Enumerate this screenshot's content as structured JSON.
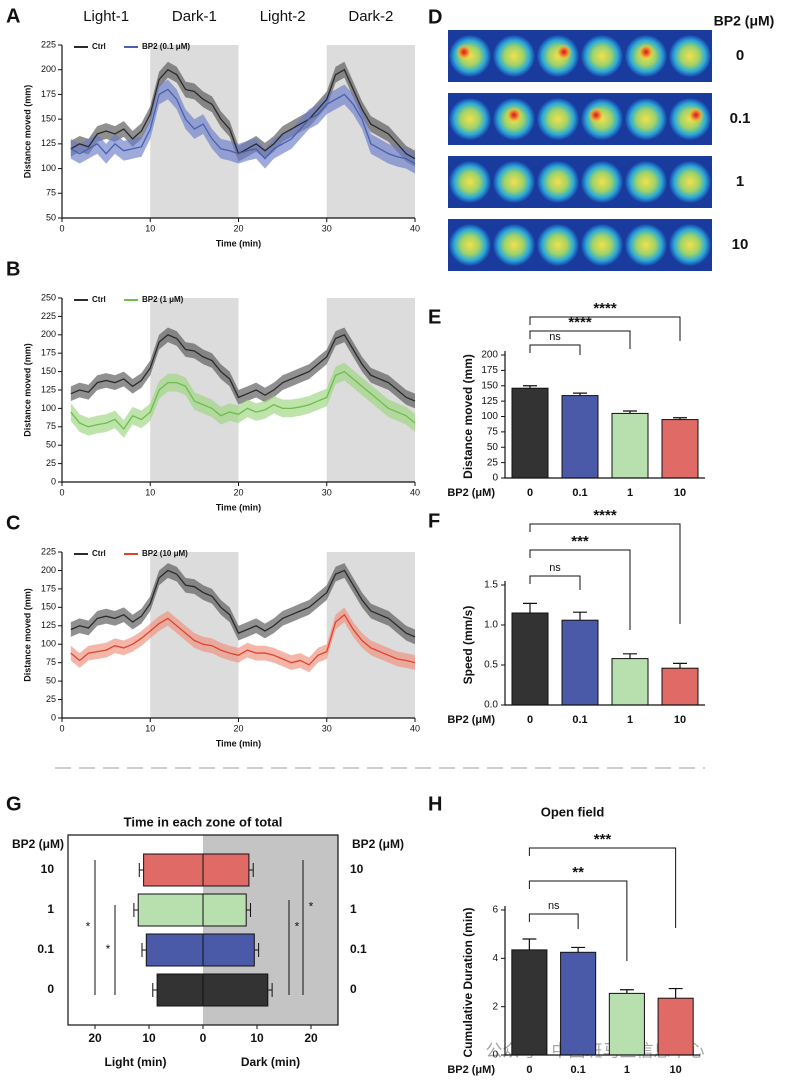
{
  "chart_data": [
    {
      "panel": "A",
      "type": "line",
      "xlabel": "Time (min)",
      "ylabel": "Distance moved (mm)",
      "phases": [
        {
          "label": "Light-1",
          "start": 0,
          "end": 10
        },
        {
          "label": "Dark-1",
          "start": 10,
          "end": 20
        },
        {
          "label": "Light-2",
          "start": 20,
          "end": 30
        },
        {
          "label": "Dark-2",
          "start": 30,
          "end": 40
        }
      ],
      "shaded": [
        [
          10,
          20
        ],
        [
          30,
          40
        ]
      ],
      "xlim": [
        0,
        40
      ],
      "xticks": [
        0,
        10,
        20,
        30,
        40
      ],
      "ylim": [
        50,
        225
      ],
      "yticks": [
        50,
        75,
        100,
        125,
        150,
        175,
        200,
        225
      ],
      "x": [
        1,
        2,
        3,
        4,
        5,
        6,
        7,
        8,
        9,
        10,
        11,
        12,
        13,
        14,
        15,
        16,
        17,
        18,
        19,
        20,
        21,
        22,
        23,
        24,
        25,
        26,
        27,
        28,
        29,
        30,
        31,
        32,
        33,
        34,
        35,
        36,
        37,
        38,
        39,
        40
      ],
      "series": [
        {
          "name": "Ctrl",
          "color": "#2b2b2b",
          "band_color": "#555555",
          "values": [
            120,
            125,
            122,
            135,
            138,
            135,
            140,
            130,
            138,
            155,
            190,
            200,
            195,
            180,
            178,
            170,
            165,
            150,
            140,
            115,
            120,
            125,
            118,
            125,
            135,
            140,
            145,
            150,
            160,
            170,
            195,
            200,
            180,
            160,
            145,
            140,
            135,
            125,
            115,
            110
          ],
          "errors": [
            8,
            8,
            8,
            8,
            8,
            8,
            8,
            8,
            8,
            8,
            8,
            8,
            8,
            8,
            8,
            8,
            8,
            8,
            8,
            8,
            8,
            8,
            8,
            8,
            8,
            8,
            8,
            8,
            8,
            8,
            8,
            8,
            8,
            8,
            8,
            8,
            8,
            8,
            8,
            8
          ]
        },
        {
          "name": "BP2 (0.1 μM)",
          "color": "#4a5fb0",
          "band_color": "#6a7cc8",
          "values": [
            120,
            115,
            120,
            125,
            115,
            125,
            118,
            120,
            122,
            140,
            175,
            180,
            170,
            150,
            140,
            145,
            130,
            120,
            118,
            115,
            118,
            120,
            110,
            120,
            125,
            130,
            140,
            150,
            155,
            165,
            170,
            175,
            165,
            150,
            125,
            120,
            115,
            112,
            110,
            105
          ],
          "errors": [
            10,
            10,
            10,
            10,
            10,
            10,
            10,
            10,
            10,
            10,
            10,
            10,
            10,
            10,
            10,
            10,
            10,
            10,
            10,
            10,
            10,
            10,
            10,
            10,
            10,
            10,
            10,
            10,
            10,
            10,
            10,
            10,
            10,
            10,
            10,
            10,
            10,
            10,
            10,
            10
          ]
        }
      ]
    },
    {
      "panel": "B",
      "type": "line",
      "xlabel": "Time (min)",
      "ylabel": "Distance moved (mm)",
      "shaded": [
        [
          10,
          20
        ],
        [
          30,
          40
        ]
      ],
      "xlim": [
        0,
        40
      ],
      "xticks": [
        0,
        10,
        20,
        30,
        40
      ],
      "ylim": [
        0,
        250
      ],
      "yticks": [
        0,
        25,
        50,
        75,
        100,
        125,
        150,
        175,
        200,
        225,
        250
      ],
      "x": [
        1,
        2,
        3,
        4,
        5,
        6,
        7,
        8,
        9,
        10,
        11,
        12,
        13,
        14,
        15,
        16,
        17,
        18,
        19,
        20,
        21,
        22,
        23,
        24,
        25,
        26,
        27,
        28,
        29,
        30,
        31,
        32,
        33,
        34,
        35,
        36,
        37,
        38,
        39,
        40
      ],
      "series": [
        {
          "name": "Ctrl",
          "color": "#2b2b2b",
          "band_color": "#555555",
          "values": [
            120,
            125,
            122,
            135,
            138,
            135,
            140,
            130,
            138,
            155,
            190,
            200,
            195,
            180,
            178,
            170,
            165,
            150,
            140,
            115,
            120,
            125,
            118,
            125,
            135,
            140,
            145,
            150,
            160,
            170,
            195,
            200,
            180,
            160,
            145,
            140,
            135,
            125,
            115,
            110
          ],
          "errors": [
            10,
            10,
            10,
            10,
            10,
            10,
            10,
            10,
            10,
            10,
            10,
            10,
            10,
            10,
            10,
            10,
            10,
            10,
            10,
            10,
            10,
            10,
            10,
            10,
            10,
            10,
            10,
            10,
            10,
            10,
            10,
            10,
            10,
            10,
            10,
            10,
            10,
            10,
            10,
            10
          ]
        },
        {
          "name": "BP2 (1 μM)",
          "color": "#6cbf4a",
          "band_color": "#9bd67e",
          "values": [
            95,
            80,
            75,
            78,
            80,
            85,
            72,
            90,
            85,
            95,
            125,
            135,
            135,
            130,
            110,
            105,
            100,
            90,
            95,
            92,
            100,
            95,
            98,
            105,
            100,
            100,
            102,
            105,
            110,
            115,
            145,
            150,
            140,
            130,
            120,
            110,
            100,
            95,
            90,
            80
          ],
          "errors": [
            12,
            12,
            12,
            12,
            12,
            12,
            12,
            12,
            12,
            12,
            12,
            12,
            12,
            12,
            12,
            12,
            12,
            12,
            12,
            12,
            12,
            12,
            12,
            12,
            12,
            12,
            12,
            12,
            12,
            12,
            12,
            12,
            12,
            12,
            12,
            12,
            12,
            12,
            12,
            12
          ]
        }
      ]
    },
    {
      "panel": "C",
      "type": "line",
      "xlabel": "Time (min)",
      "ylabel": "Distance moved (mm)",
      "shaded": [
        [
          10,
          20
        ],
        [
          30,
          40
        ]
      ],
      "xlim": [
        0,
        40
      ],
      "xticks": [
        0,
        10,
        20,
        30,
        40
      ],
      "ylim": [
        0,
        225
      ],
      "yticks": [
        0,
        25,
        50,
        75,
        100,
        125,
        150,
        175,
        200,
        225
      ],
      "x": [
        1,
        2,
        3,
        4,
        5,
        6,
        7,
        8,
        9,
        10,
        11,
        12,
        13,
        14,
        15,
        16,
        17,
        18,
        19,
        20,
        21,
        22,
        23,
        24,
        25,
        26,
        27,
        28,
        29,
        30,
        31,
        32,
        33,
        34,
        35,
        36,
        37,
        38,
        39,
        40
      ],
      "series": [
        {
          "name": "Ctrl",
          "color": "#2b2b2b",
          "band_color": "#555555",
          "values": [
            120,
            125,
            122,
            135,
            138,
            135,
            140,
            130,
            138,
            155,
            190,
            200,
            195,
            180,
            178,
            170,
            165,
            150,
            140,
            115,
            120,
            125,
            118,
            125,
            135,
            140,
            145,
            150,
            160,
            170,
            195,
            200,
            180,
            160,
            145,
            140,
            135,
            125,
            115,
            110
          ],
          "errors": [
            10,
            10,
            10,
            10,
            10,
            10,
            10,
            10,
            10,
            10,
            10,
            10,
            10,
            10,
            10,
            10,
            10,
            10,
            10,
            10,
            10,
            10,
            10,
            10,
            10,
            10,
            10,
            10,
            10,
            10,
            10,
            10,
            10,
            10,
            10,
            10,
            10,
            10,
            10,
            10
          ]
        },
        {
          "name": "BP2 (10 μM)",
          "color": "#e0432f",
          "band_color": "#ee8f7a",
          "values": [
            88,
            78,
            88,
            90,
            92,
            98,
            95,
            100,
            108,
            118,
            128,
            135,
            125,
            115,
            105,
            100,
            98,
            92,
            88,
            85,
            92,
            88,
            88,
            85,
            80,
            75,
            78,
            72,
            85,
            90,
            130,
            140,
            120,
            105,
            95,
            90,
            85,
            80,
            78,
            75
          ],
          "errors": [
            10,
            10,
            10,
            10,
            10,
            10,
            10,
            10,
            10,
            10,
            10,
            10,
            10,
            10,
            10,
            10,
            10,
            10,
            10,
            10,
            10,
            10,
            10,
            10,
            10,
            10,
            10,
            10,
            10,
            10,
            10,
            10,
            10,
            10,
            10,
            10,
            10,
            10,
            10,
            10
          ]
        }
      ]
    },
    {
      "panel": "D",
      "type": "heatmap",
      "legend_title": "BP2 (μM)",
      "rows": [
        "0",
        "0.1",
        "1",
        "10"
      ]
    },
    {
      "panel": "E",
      "type": "bar",
      "ylabel": "Distance moved (mm)",
      "xlabel": "BP2 (μM)",
      "categories": [
        "0",
        "0.1",
        "1",
        "10"
      ],
      "values": [
        146,
        134,
        105,
        95
      ],
      "errors": [
        4,
        4,
        4,
        3
      ],
      "colors": [
        "#333333",
        "#4a5aa8",
        "#b7e0ae",
        "#e06a66"
      ],
      "ylim": [
        0,
        200
      ],
      "yticks": [
        0,
        25,
        50,
        75,
        100,
        125,
        150,
        175,
        200
      ],
      "significance": [
        {
          "from": 0,
          "to": 1,
          "label": "ns"
        },
        {
          "from": 0,
          "to": 2,
          "label": "****"
        },
        {
          "from": 0,
          "to": 3,
          "label": "****"
        }
      ]
    },
    {
      "panel": "F",
      "type": "bar",
      "ylabel": "Speed (mm/s)",
      "xlabel": "BP2 (μM)",
      "categories": [
        "0",
        "0.1",
        "1",
        "10"
      ],
      "values": [
        1.15,
        1.06,
        0.58,
        0.46
      ],
      "errors": [
        0.12,
        0.1,
        0.06,
        0.06
      ],
      "colors": [
        "#333333",
        "#4a5aa8",
        "#b7e0ae",
        "#e06a66"
      ],
      "ylim": [
        0,
        1.5
      ],
      "yticks": [
        {
          "value": 0,
          "label": "0.0"
        },
        0.5,
        {
          "value": 1,
          "label": "1.0"
        },
        1.5
      ],
      "significance": [
        {
          "from": 0,
          "to": 1,
          "label": "ns"
        },
        {
          "from": 0,
          "to": 2,
          "label": "***"
        },
        {
          "from": 0,
          "to": 3,
          "label": "****"
        }
      ]
    },
    {
      "panel": "G",
      "type": "butterfly",
      "title": "Time in each zone of total",
      "ylabel": "BP2 (μM)",
      "categories": [
        "10",
        "1",
        "0.1",
        "0"
      ],
      "colors": [
        "#e06a66",
        "#b7e0ae",
        "#4a5aa8",
        "#333333"
      ],
      "light": {
        "label": "Light (min)",
        "values": [
          11,
          12,
          10.5,
          8.5
        ],
        "errors": [
          0.8,
          0.8,
          0.8,
          0.8
        ]
      },
      "dark": {
        "label": "Dark (min)",
        "values": [
          8.5,
          8,
          9.5,
          12
        ],
        "errors": [
          0.8,
          0.8,
          0.8,
          0.8
        ]
      },
      "xlim": [
        0,
        25
      ],
      "xticks": [
        0,
        10,
        20
      ],
      "left_marks": [
        "*",
        "*"
      ],
      "right_marks": [
        "*",
        "*"
      ]
    },
    {
      "panel": "H",
      "type": "bar",
      "title": "Open field",
      "ylabel": "Cumulative Duration (min)",
      "xlabel": "BP2 (μM)",
      "categories": [
        "0",
        "0.1",
        "1",
        "10"
      ],
      "values": [
        4.35,
        4.25,
        2.55,
        2.35
      ],
      "errors": [
        0.45,
        0.2,
        0.15,
        0.4
      ],
      "colors": [
        "#333333",
        "#4a5aa8",
        "#b7e0ae",
        "#e06a66"
      ],
      "ylim": [
        0,
        6
      ],
      "yticks": [
        0,
        2,
        4,
        6
      ],
      "significance": [
        {
          "from": 0,
          "to": 1,
          "label": "ns"
        },
        {
          "from": 0,
          "to": 2,
          "label": "**"
        },
        {
          "from": 0,
          "to": 3,
          "label": "***"
        }
      ]
    }
  ],
  "watermark": "公众号 · 中国斑马鱼信息中心"
}
